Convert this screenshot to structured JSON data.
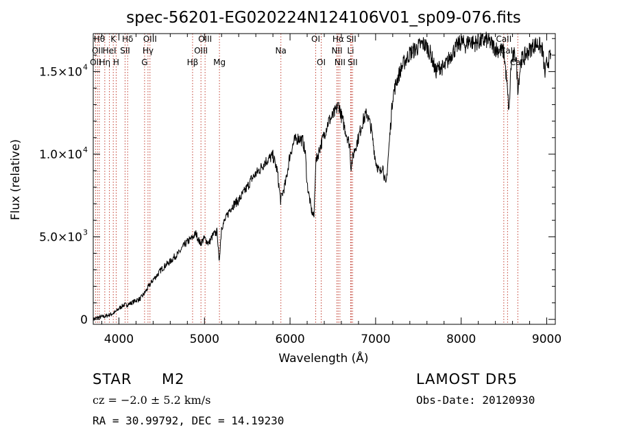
{
  "chart_data": {
    "type": "line",
    "title": "spec-56201-EG020224N124106V01_sp09-076.fits",
    "xlabel": "Wavelength (Å)",
    "ylabel": "Flux (relative)",
    "xlim": [
      3700,
      9100
    ],
    "ylim": [
      -300,
      17300
    ],
    "x_ticks": [
      {
        "value": 4000,
        "label": "4000"
      },
      {
        "value": 5000,
        "label": "5000"
      },
      {
        "value": 6000,
        "label": "6000"
      },
      {
        "value": 7000,
        "label": "7000"
      },
      {
        "value": 8000,
        "label": "8000"
      },
      {
        "value": 9000,
        "label": "9000"
      }
    ],
    "y_ticks": [
      {
        "value": 0,
        "base": "0",
        "exp": ""
      },
      {
        "value": 5000,
        "base": "5.0×10",
        "exp": "3"
      },
      {
        "value": 10000,
        "base": "1.0×10",
        "exp": "4"
      },
      {
        "value": 15000,
        "base": "1.5×10",
        "exp": "4"
      }
    ],
    "grid": false,
    "series": [
      {
        "x": [
          3700,
          3750,
          3800,
          3850,
          3900,
          3950,
          4000,
          4050,
          4100,
          4150,
          4200,
          4250,
          4300,
          4350,
          4400,
          4450,
          4500,
          4550,
          4600,
          4650,
          4700,
          4750,
          4800,
          4850,
          4900,
          4950,
          5000,
          5050,
          5100,
          5150,
          5170,
          5200,
          5250,
          5300,
          5350,
          5400,
          5450,
          5500,
          5550,
          5600,
          5650,
          5700,
          5750,
          5800,
          5850,
          5890,
          5950,
          6000,
          6050,
          6100,
          6150,
          6180,
          6200,
          6250,
          6280,
          6300,
          6350,
          6400,
          6450,
          6500,
          6550,
          6570,
          6600,
          6650,
          6700,
          6710,
          6750,
          6800,
          6850,
          6900,
          6950,
          7000,
          7050,
          7080,
          7120,
          7150,
          7200,
          7250,
          7300,
          7350,
          7400,
          7450,
          7500,
          7550,
          7600,
          7650,
          7700,
          7750,
          7800,
          7850,
          7900,
          7950,
          8000,
          8050,
          8100,
          8150,
          8200,
          8250,
          8300,
          8350,
          8400,
          8450,
          8500,
          8530,
          8545,
          8560,
          8580,
          8600,
          8640,
          8662,
          8700,
          8750,
          8800,
          8850,
          8900,
          8950,
          8980,
          9000,
          9050
        ],
        "y": [
          0,
          100,
          150,
          200,
          300,
          400,
          650,
          850,
          900,
          1000,
          1150,
          1250,
          1600,
          2000,
          2400,
          2700,
          3050,
          3300,
          3500,
          3800,
          4000,
          4400,
          4700,
          4900,
          5200,
          4600,
          4900,
          4600,
          5100,
          5300,
          3400,
          5600,
          6100,
          6700,
          7000,
          7200,
          7600,
          8000,
          8500,
          8800,
          9100,
          9500,
          9700,
          9900,
          9000,
          7200,
          8300,
          10000,
          10800,
          11000,
          10800,
          10000,
          8200,
          6600,
          6200,
          9500,
          10400,
          11200,
          12000,
          12300,
          12800,
          13000,
          12300,
          11400,
          10500,
          9200,
          10200,
          11000,
          12000,
          12500,
          11500,
          9600,
          8800,
          9400,
          8000,
          10000,
          13500,
          14500,
          15200,
          15700,
          16100,
          16300,
          16500,
          16700,
          16500,
          16000,
          15000,
          15300,
          15200,
          15700,
          16200,
          16500,
          16800,
          16600,
          16900,
          16700,
          16800,
          16850,
          16900,
          16700,
          16400,
          16300,
          16200,
          14500,
          13500,
          12500,
          15200,
          15800,
          16000,
          14000,
          15700,
          16000,
          16300,
          16600,
          16700,
          16300,
          14800,
          15500,
          16000
        ]
      }
    ],
    "lines": [
      {
        "x": 3727,
        "label": "OII",
        "row": 2
      },
      {
        "x": 3750,
        "label": "OII",
        "row": 1
      },
      {
        "x": 3771,
        "label": "Hθ",
        "row": 0
      },
      {
        "x": 3835,
        "label": "Hη",
        "row": 2
      },
      {
        "x": 3889,
        "label": "HeI",
        "row": 1
      },
      {
        "x": 3934,
        "label": "K",
        "row": 0
      },
      {
        "x": 3968,
        "label": "H",
        "row": 2
      },
      {
        "x": 4072,
        "label": "SII",
        "row": 1
      },
      {
        "x": 4102,
        "label": "Hδ",
        "row": 0
      },
      {
        "x": 4300,
        "label": "G",
        "row": 2
      },
      {
        "x": 4340,
        "label": "Hγ",
        "row": 1
      },
      {
        "x": 4363,
        "label": "OIII",
        "row": 0
      },
      {
        "x": 4861,
        "label": "Hβ",
        "row": 2
      },
      {
        "x": 4959,
        "label": "OIII",
        "row": 1
      },
      {
        "x": 5007,
        "label": "OIII",
        "row": 0
      },
      {
        "x": 5175,
        "label": "Mg",
        "row": 2
      },
      {
        "x": 5893,
        "label": "Na",
        "row": 1
      },
      {
        "x": 6300,
        "label": "OI",
        "row": 0
      },
      {
        "x": 6364,
        "label": "OI",
        "row": 2
      },
      {
        "x": 6548,
        "label": "NII",
        "row": 1
      },
      {
        "x": 6563,
        "label": "Hα",
        "row": 0
      },
      {
        "x": 6583,
        "label": "NII",
        "row": 2
      },
      {
        "x": 6708,
        "label": "Li",
        "row": 1
      },
      {
        "x": 6716,
        "label": "SII",
        "row": 0
      },
      {
        "x": 6731,
        "label": "SII",
        "row": 2
      },
      {
        "x": 8498,
        "label": "CaII",
        "row": 0
      },
      {
        "x": 8542,
        "label": "CaII",
        "row": 1
      },
      {
        "x": 8662,
        "label": "CaII",
        "row": 2
      }
    ]
  },
  "info": {
    "class": "STAR",
    "subclass": "M2",
    "survey": "LAMOST DR5",
    "redshift": "cz = −2.0 ± 5.2 km/s",
    "obs_date": "Obs-Date: 20120930",
    "coords": "RA =  30.99792, DEC =  14.19230"
  }
}
